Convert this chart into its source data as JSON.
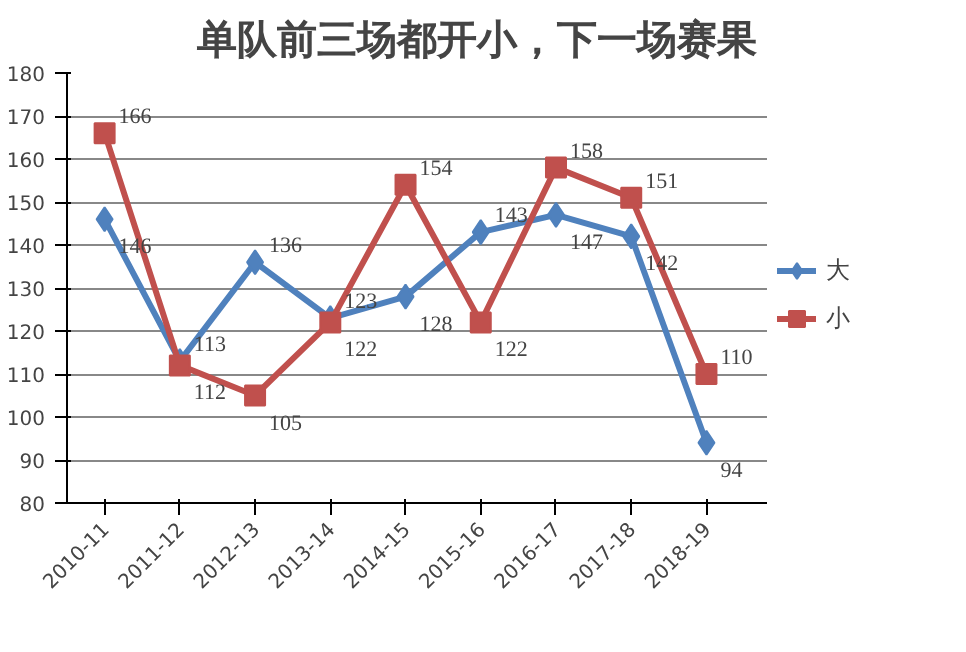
{
  "chart_data": {
    "type": "line",
    "title": "单队前三场都开小，下一场赛果",
    "categories": [
      "2010-11",
      "2011-12",
      "2012-13",
      "2013-14",
      "2014-15",
      "2015-16",
      "2016-17",
      "2017-18",
      "2018-19"
    ],
    "series": [
      {
        "name": "大",
        "color": "#4f81bd",
        "marker": "diamond",
        "values": [
          146,
          113,
          136,
          123,
          128,
          143,
          147,
          142,
          94
        ]
      },
      {
        "name": "小",
        "color": "#c0504d",
        "marker": "square",
        "values": [
          166,
          112,
          105,
          122,
          154,
          122,
          158,
          151,
          110
        ]
      }
    ],
    "ylim": [
      80,
      180
    ],
    "yticks": [
      80,
      90,
      100,
      110,
      120,
      130,
      140,
      150,
      160,
      170,
      180
    ],
    "grid": "y",
    "legend": "right",
    "data_labels": true
  }
}
